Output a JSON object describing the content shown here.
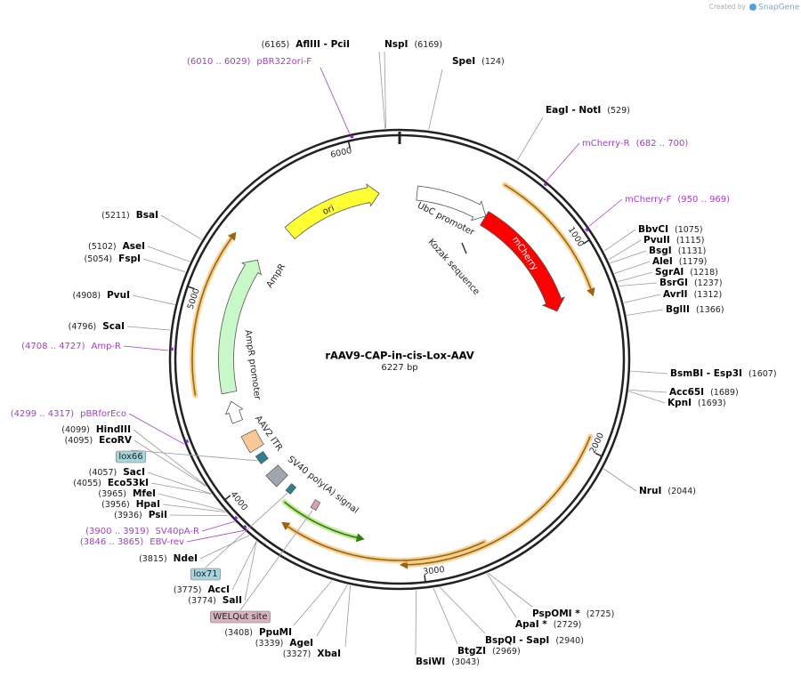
{
  "header": {
    "created_by": "Created by",
    "brand": "SnapGene"
  },
  "map": {
    "name": "rAAV9-CAP-in-cis-Lox-AAV",
    "length": "6227 bp",
    "ticks": [
      "1000",
      "2000",
      "3000",
      "4000",
      "5000",
      "6000"
    ],
    "features": [
      {
        "label": "ori"
      },
      {
        "label": "UbC promoter"
      },
      {
        "label": "Kozak sequence"
      },
      {
        "label": "mCherry"
      },
      {
        "label": "AmpR"
      },
      {
        "label": "AmpR promoter"
      },
      {
        "label": "AAV2 ITR"
      },
      {
        "label": "SV40 poly(A) signal"
      },
      {
        "label": "lox66"
      },
      {
        "label": "lox71"
      },
      {
        "label": "WELQut site"
      }
    ],
    "sites": [
      {
        "name": "AflIII  - PciI",
        "position": "(6165)"
      },
      {
        "name": "NspI",
        "position": "(6169)"
      },
      {
        "name": "SpeI",
        "position": "(124)"
      },
      {
        "name": "EagI  - NotI",
        "position": "(529)"
      },
      {
        "name": "BbvCI",
        "position": "(1075)"
      },
      {
        "name": "PvuII",
        "position": "(1115)"
      },
      {
        "name": "BsgI",
        "position": "(1131)"
      },
      {
        "name": "AleI",
        "position": "(1179)"
      },
      {
        "name": "SgrAI",
        "position": "(1218)"
      },
      {
        "name": "BsrGI",
        "position": "(1237)"
      },
      {
        "name": "AvrII",
        "position": "(1312)"
      },
      {
        "name": "BglII",
        "position": "(1366)"
      },
      {
        "name": "BsmBI  - Esp3I",
        "position": "(1607)"
      },
      {
        "name": "Acc65I",
        "position": "(1689)"
      },
      {
        "name": "KpnI",
        "position": "(1693)"
      },
      {
        "name": "NruI",
        "position": "(2044)"
      },
      {
        "name": "PspOMI *",
        "position": "(2725)"
      },
      {
        "name": "ApaI *",
        "position": "(2729)"
      },
      {
        "name": "BspQI  - SapI",
        "position": "(2940)"
      },
      {
        "name": "BtgZI",
        "position": "(2969)"
      },
      {
        "name": "BsiWI",
        "position": "(3043)"
      },
      {
        "name": "XbaI",
        "position": "(3327)"
      },
      {
        "name": "AgeI",
        "position": "(3339)"
      },
      {
        "name": "PpuMI",
        "position": "(3408)"
      },
      {
        "name": "SalI",
        "position": "(3774)"
      },
      {
        "name": "AccI",
        "position": "(3775)"
      },
      {
        "name": "NdeI",
        "position": "(3815)"
      },
      {
        "name": "PsiI",
        "position": "(3936)"
      },
      {
        "name": "HpaI",
        "position": "(3956)"
      },
      {
        "name": "MfeI",
        "position": "(3965)"
      },
      {
        "name": "Eco53kI",
        "position": "(4055)"
      },
      {
        "name": "SacI",
        "position": "(4057)"
      },
      {
        "name": "EcoRV",
        "position": "(4095)"
      },
      {
        "name": "HindIII",
        "position": "(4099)"
      },
      {
        "name": "ScaI",
        "position": "(4796)"
      },
      {
        "name": "PvuI",
        "position": "(4908)"
      },
      {
        "name": "FspI",
        "position": "(5054)"
      },
      {
        "name": "AseI",
        "position": "(5102)"
      },
      {
        "name": "BsaI",
        "position": "(5211)"
      }
    ],
    "primers": [
      {
        "name": "pBR322ori-F",
        "range": "(6010 .. 6029)"
      },
      {
        "name": "mCherry-R",
        "range": "(682 .. 700)"
      },
      {
        "name": "mCherry-F",
        "range": "(950 .. 969)"
      },
      {
        "name": "SV40pA-R",
        "range": "(3900 .. 3919)"
      },
      {
        "name": "EBV-rev",
        "range": "(3846 .. 3865)"
      },
      {
        "name": "pBRforEco",
        "range": "(4299 .. 4317)"
      },
      {
        "name": "Amp-R",
        "range": "(4708 .. 4727)"
      }
    ]
  }
}
